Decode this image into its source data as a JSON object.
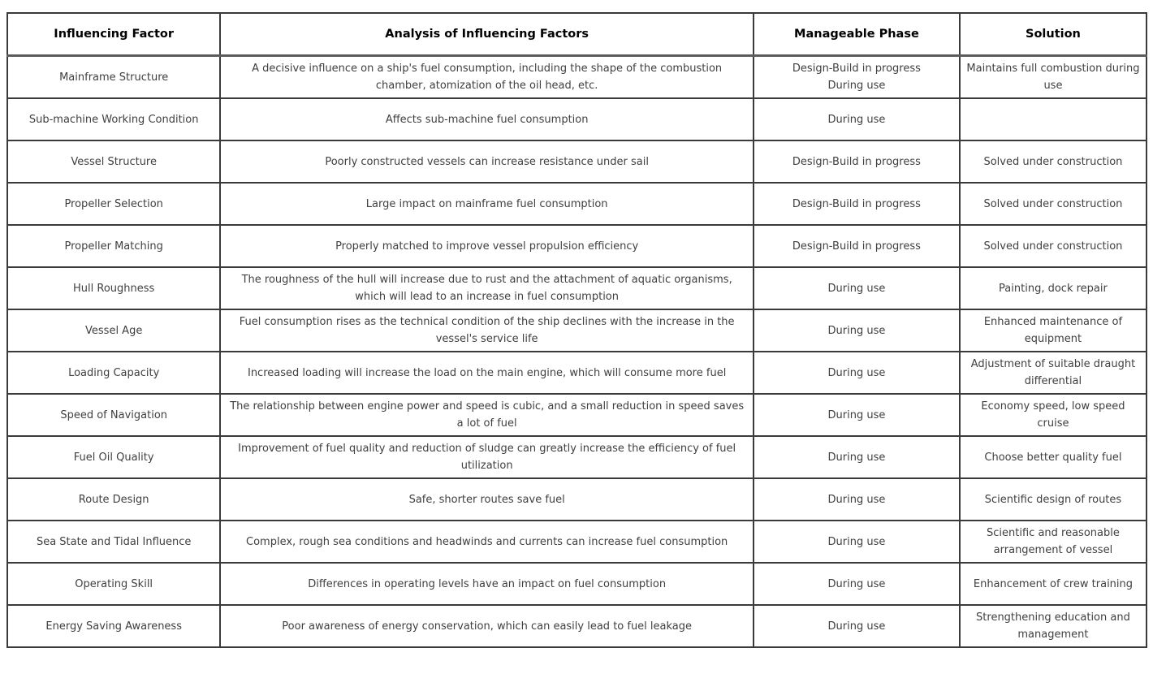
{
  "table": {
    "headers": [
      "Influencing Factor",
      "Analysis of Influencing Factors",
      "Manageable Phase",
      "Solution"
    ],
    "rows": [
      {
        "factor": "Mainframe Structure",
        "analysis": "A decisive influence on a ship's fuel consumption, including the shape of the combustion chamber, atomization of the oil head, etc.",
        "phase": "Design-Build in progress",
        "phase2": "During use",
        "solution": "Maintains full combustion during use"
      },
      {
        "factor": "Sub-machine Working Condition",
        "analysis": "Affects sub-machine fuel consumption",
        "phase": "During use",
        "solution": ""
      },
      {
        "factor": "Vessel Structure",
        "analysis": "Poorly constructed vessels can increase resistance under sail",
        "phase": "Design-Build in progress",
        "solution": "Solved under construction"
      },
      {
        "factor": "Propeller Selection",
        "analysis": "Large impact on mainframe fuel consumption",
        "phase": "Design-Build in progress",
        "solution": "Solved under construction"
      },
      {
        "factor": "Propeller Matching",
        "analysis": "Properly matched to improve vessel propulsion efficiency",
        "phase": "Design-Build in progress",
        "solution": "Solved under construction"
      },
      {
        "factor": "Hull Roughness",
        "analysis": "The roughness of the hull will increase due to rust and the attachment of aquatic organisms, which will lead to an increase in fuel consumption",
        "phase": "During use",
        "solution": "Painting, dock repair"
      },
      {
        "factor": "Vessel Age",
        "analysis": "Fuel consumption rises as the technical condition of the ship declines with the increase in the vessel's service life",
        "phase": "During use",
        "solution": "Enhanced maintenance of equipment"
      },
      {
        "factor": "Loading Capacity",
        "analysis": "Increased loading will increase the load on the main engine, which will consume more fuel",
        "phase": "During use",
        "solution": "Adjustment of suitable draught differential"
      },
      {
        "factor": "Speed of Navigation",
        "analysis": "The relationship between engine power and speed is cubic, and a small reduction in speed saves a lot of fuel",
        "phase": "During use",
        "solution": "Economy speed, low speed cruise"
      },
      {
        "factor": "Fuel Oil Quality",
        "analysis": "Improvement of fuel quality and reduction of sludge can greatly increase the efficiency of fuel utilization",
        "phase": "During use",
        "solution": "Choose better quality fuel"
      },
      {
        "factor": "Route Design",
        "analysis": "Safe, shorter routes save fuel",
        "phase": "During use",
        "solution": "Scientific design of routes"
      },
      {
        "factor": "Sea State and Tidal Influence",
        "analysis": "Complex, rough sea conditions and headwinds and currents can increase fuel consumption",
        "phase": "During use",
        "solution": "Scientific and reasonable arrangement of vessel"
      },
      {
        "factor": "Operating Skill",
        "analysis": "Differences in operating levels have an impact on fuel consumption",
        "phase": "During use",
        "solution": "Enhancement of crew training"
      },
      {
        "factor": "Energy Saving Awareness",
        "analysis": "Poor awareness of energy conservation, which can easily lead to fuel leakage",
        "phase": "During use",
        "solution": "Strengthening education and management"
      }
    ]
  }
}
